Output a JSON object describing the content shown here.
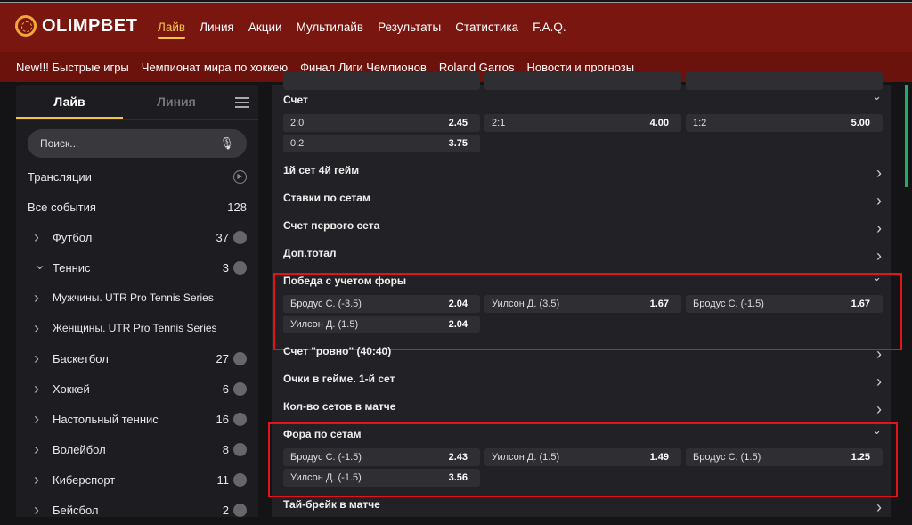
{
  "brand": {
    "name": "OLIMPBET",
    "accent": "#f5c34a",
    "header_bg": "#7a1610"
  },
  "nav": [
    "Лайв",
    "Линия",
    "Акции",
    "Мультилайв",
    "Результаты",
    "Статистика",
    "F.A.Q."
  ],
  "subnav": [
    "New!!! Быстрые игры",
    "Чемпионат мира по хоккею",
    "Финал Лиги Чемпионов",
    "Roland Garros",
    "Новости и прогнозы"
  ],
  "sidebar": {
    "tabs": [
      "Лайв",
      "Линия"
    ],
    "search_placeholder": "Поиск...",
    "broadcasts": "Трансляции",
    "all_events": {
      "label": "Все события",
      "count": "128"
    },
    "sports": [
      {
        "label": "Футбол",
        "count": "37",
        "icon": "soccer-ball",
        "expanded": false
      },
      {
        "label": "Теннис",
        "count": "3",
        "icon": "tennis",
        "expanded": true
      },
      {
        "label": "Мужчины. UTR Pro Tennis Series",
        "count": "",
        "sub": true
      },
      {
        "label": "Женщины. UTR Pro Tennis Series",
        "count": "",
        "sub": true
      },
      {
        "label": "Баскетбол",
        "count": "27",
        "icon": "basketball"
      },
      {
        "label": "Хоккей",
        "count": "6",
        "icon": "hockey-stick"
      },
      {
        "label": "Настольный теннис",
        "count": "16",
        "icon": "table-tennis"
      },
      {
        "label": "Волейбол",
        "count": "8",
        "icon": "volleyball"
      },
      {
        "label": "Киберспорт",
        "count": "11",
        "icon": "gamepad"
      },
      {
        "label": "Бейсбол",
        "count": "2",
        "icon": "baseball-bat"
      }
    ]
  },
  "markets": [
    {
      "title": "Счет",
      "expanded": true,
      "odds": [
        [
          "2:0",
          "2.45"
        ],
        [
          "2:1",
          "4.00"
        ],
        [
          "1:2",
          "5.00"
        ],
        [
          "0:2",
          "3.75"
        ]
      ]
    },
    {
      "title": "1й сет 4й гейм"
    },
    {
      "title": "Ставки по сетам"
    },
    {
      "title": "Счет первого сета"
    },
    {
      "title": "Доп.тотал"
    },
    {
      "title": "Победа с учетом форы",
      "expanded": true,
      "highlighted": true,
      "odds": [
        [
          "Бродус С. (-3.5)",
          "2.04"
        ],
        [
          "Уилсон Д. (3.5)",
          "1.67"
        ],
        [
          "Бродус С. (-1.5)",
          "1.67"
        ],
        [
          "Уилсон Д. (1.5)",
          "2.04"
        ]
      ]
    },
    {
      "title": "Счет \"ровно\" (40:40)"
    },
    {
      "title": "Очки в гейме. 1-й сет"
    },
    {
      "title": "Кол-во сетов в матче"
    },
    {
      "title": "Фора по сетам",
      "expanded": true,
      "highlighted": true,
      "odds": [
        [
          "Бродус С. (-1.5)",
          "2.43"
        ],
        [
          "Уилсон Д. (1.5)",
          "1.49"
        ],
        [
          "Бродус С. (1.5)",
          "1.25"
        ],
        [
          "Уилсон Д. (-1.5)",
          "3.56"
        ]
      ]
    },
    {
      "title": "Тай-брейк в матче"
    }
  ],
  "highlight_color": "#e0141a"
}
